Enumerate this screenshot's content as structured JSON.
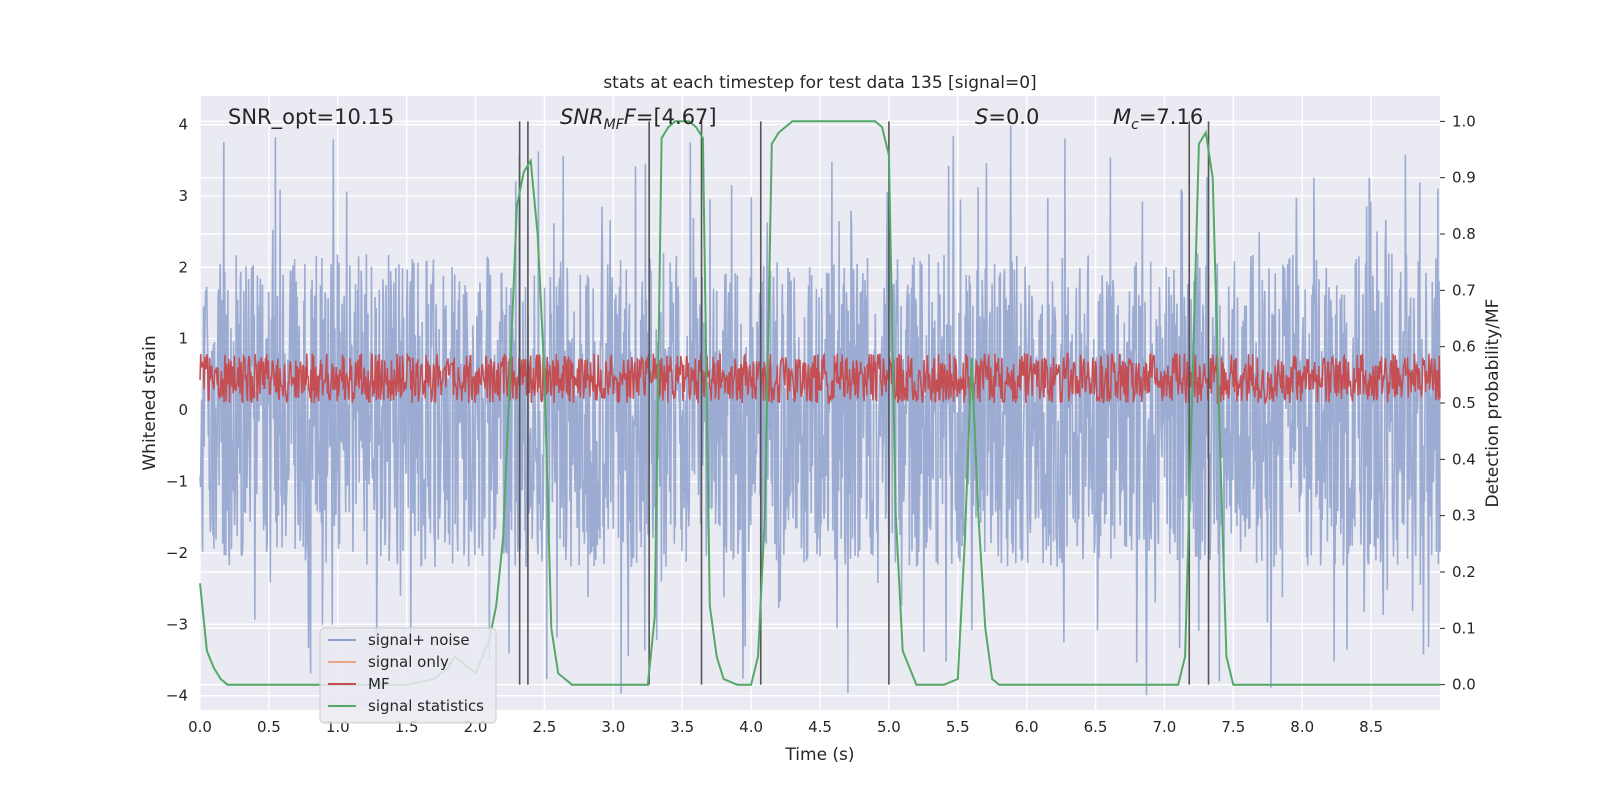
{
  "chart_data": {
    "type": "line",
    "title": "stats at each timestep for test data 135 [signal=0]",
    "xlabel": "Time (s)",
    "ylabel_left": "Whitened strain",
    "ylabel_right": "Detection probability/MF",
    "xlim": [
      0,
      9
    ],
    "ylim_left": [
      -4.2,
      4.4
    ],
    "ylim_right": [
      -0.045,
      1.045
    ],
    "xticks": [
      "0.0",
      "0.5",
      "1.0",
      "1.5",
      "2.0",
      "2.5",
      "3.0",
      "3.5",
      "4.0",
      "4.5",
      "5.0",
      "5.5",
      "6.0",
      "6.5",
      "7.0",
      "7.5",
      "8.0",
      "8.5"
    ],
    "yticks_left": [
      "4",
      "3",
      "2",
      "1",
      "0",
      "−1",
      "−2",
      "−3",
      "−4"
    ],
    "yticks_right": [
      "1.0",
      "0.9",
      "0.8",
      "0.7",
      "0.6",
      "0.5",
      "0.4",
      "0.3",
      "0.2",
      "0.1",
      "0.0"
    ],
    "grid": true,
    "annotations": {
      "snr_opt": "SNR_opt=10.15",
      "snr_mf_base": "SNR",
      "snr_mf_sub": "MF",
      "snr_mf_value": "=[4.67]",
      "s_base": "S",
      "s_value": "=0.0",
      "mc_base": "M",
      "mc_sub": "c",
      "mc_value": "=7.16"
    },
    "legend_position": "lower left",
    "legend": [
      "signal+ noise",
      "signal only",
      "MF",
      "signal statistics"
    ],
    "colors": {
      "signal_noise": "#8da0cb",
      "signal_only": "#e8a789",
      "mf": "#c44e52",
      "signal_statistics": "#55a868",
      "vlines": "#555555"
    },
    "series": [
      {
        "name": "signal+ noise",
        "axis": "left",
        "description_values": "noise band approx ±2.5, spikes to about ±4",
        "envelope_typical": 2.2,
        "envelope_max": 4.0
      },
      {
        "name": "signal only",
        "axis": "left",
        "values": []
      },
      {
        "name": "MF",
        "axis": "right",
        "baseline": 0.53,
        "amplitude": 0.1
      },
      {
        "name": "signal statistics",
        "axis": "right",
        "x": [
          0.0,
          0.05,
          0.1,
          0.15,
          0.2,
          0.5,
          1.0,
          1.5,
          1.7,
          1.8,
          1.85,
          1.9,
          1.95,
          2.0,
          2.05,
          2.1,
          2.15,
          2.2,
          2.25,
          2.3,
          2.35,
          2.4,
          2.45,
          2.5,
          2.55,
          2.6,
          2.7,
          3.0,
          3.2,
          3.25,
          3.3,
          3.35,
          3.4,
          3.45,
          3.5,
          3.55,
          3.6,
          3.65,
          3.7,
          3.75,
          3.8,
          3.9,
          4.0,
          4.05,
          4.1,
          4.15,
          4.2,
          4.3,
          4.5,
          4.8,
          4.9,
          4.95,
          5.0,
          5.05,
          5.1,
          5.2,
          5.4,
          5.5,
          5.55,
          5.6,
          5.65,
          5.7,
          5.75,
          5.8,
          5.9,
          6.0,
          6.5,
          6.7,
          6.9,
          7.1,
          7.15,
          7.2,
          7.25,
          7.3,
          7.35,
          7.4,
          7.45,
          7.5,
          7.6,
          8.0,
          8.5,
          9.0
        ],
        "values": [
          0.18,
          0.06,
          0.03,
          0.01,
          0.0,
          0.0,
          0.0,
          0.0,
          0.01,
          0.03,
          0.05,
          0.04,
          0.03,
          0.02,
          0.05,
          0.08,
          0.14,
          0.26,
          0.55,
          0.85,
          0.91,
          0.93,
          0.8,
          0.55,
          0.1,
          0.02,
          0.0,
          0.0,
          0.0,
          0.0,
          0.12,
          0.97,
          0.99,
          1.0,
          1.0,
          1.0,
          0.99,
          0.97,
          0.14,
          0.05,
          0.01,
          0.0,
          0.0,
          0.05,
          0.3,
          0.96,
          0.98,
          1.0,
          1.0,
          1.0,
          1.0,
          0.99,
          0.94,
          0.3,
          0.06,
          0.0,
          0.0,
          0.01,
          0.25,
          0.58,
          0.3,
          0.1,
          0.01,
          0.0,
          0.0,
          0.0,
          0.0,
          0.0,
          0.0,
          0.0,
          0.05,
          0.5,
          0.96,
          0.98,
          0.9,
          0.45,
          0.05,
          0.0,
          0.0,
          0.0,
          0.0,
          0.0
        ]
      }
    ],
    "vertical_lines_x": [
      2.32,
      2.38,
      3.26,
      3.64,
      4.07,
      5.0,
      7.18,
      7.32
    ]
  }
}
